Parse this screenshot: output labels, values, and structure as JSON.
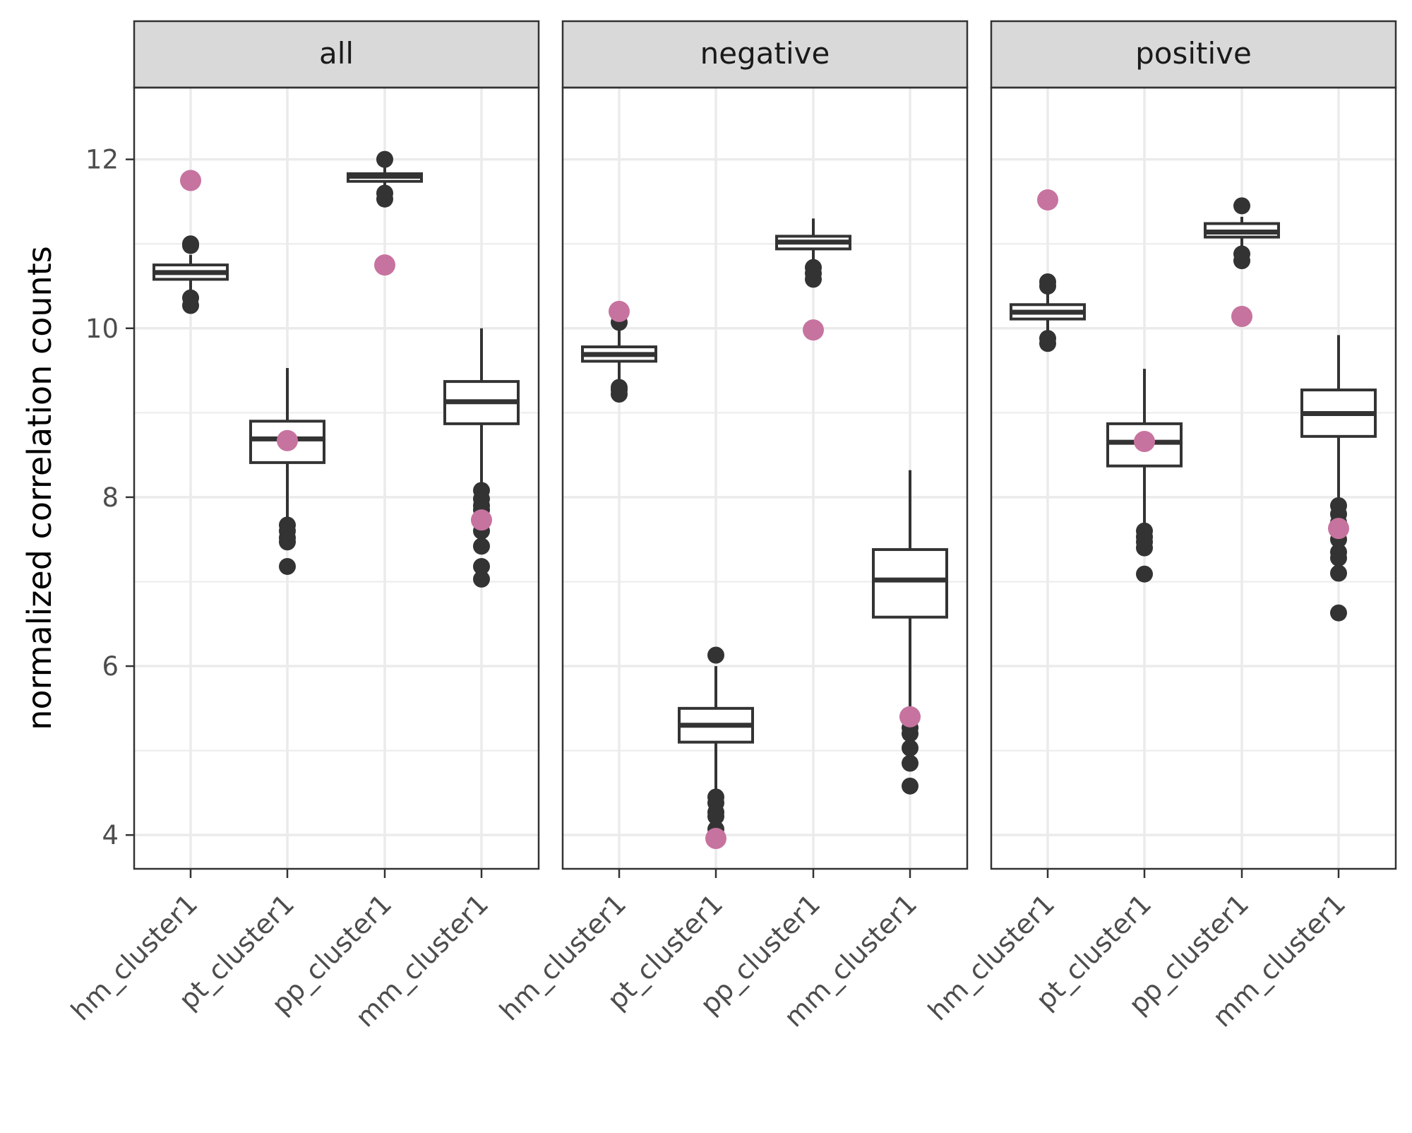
{
  "chart_data": {
    "type": "boxplot",
    "ylabel": "normalized correlation counts",
    "xlabel": "",
    "ylim": [
      3.6,
      12.85
    ],
    "yticks": [
      4,
      6,
      8,
      10,
      12
    ],
    "grid": true,
    "categories": [
      "hm_cluster1",
      "pt_cluster1",
      "pp_cluster1",
      "mm_cluster1"
    ],
    "colors": {
      "box": "#333333",
      "observed": "#c7739f",
      "strip": "#d9d9d9",
      "grid": "#ebebeb"
    },
    "panels": [
      {
        "title": "all",
        "boxes": [
          {
            "category": "hm_cluster1",
            "q1": 10.58,
            "median": 10.66,
            "q3": 10.75,
            "whisker_low": 10.45,
            "whisker_high": 10.87,
            "outliers": [
              10.98,
              11.0,
              10.36,
              10.27
            ],
            "observed": 11.75
          },
          {
            "category": "pt_cluster1",
            "q1": 8.41,
            "median": 8.69,
            "q3": 8.9,
            "whisker_low": 7.72,
            "whisker_high": 9.53,
            "outliers": [
              7.67,
              7.6,
              7.52,
              7.47,
              7.18
            ],
            "observed": 8.67
          },
          {
            "category": "pp_cluster1",
            "q1": 11.74,
            "median": 11.8,
            "q3": 11.83,
            "whisker_low": 11.65,
            "whisker_high": 11.93,
            "outliers": [
              12.0,
              11.6,
              11.53
            ],
            "observed": 10.75
          },
          {
            "category": "mm_cluster1",
            "q1": 8.87,
            "median": 9.13,
            "q3": 9.37,
            "whisker_low": 8.15,
            "whisker_high": 10.0,
            "outliers": [
              8.08,
              7.98,
              7.9,
              7.85,
              7.77,
              7.6,
              7.42,
              7.18,
              7.03
            ],
            "observed": 7.73
          }
        ]
      },
      {
        "title": "negative",
        "boxes": [
          {
            "category": "hm_cluster1",
            "q1": 9.61,
            "median": 9.69,
            "q3": 9.78,
            "whisker_low": 9.38,
            "whisker_high": 10.0,
            "outliers": [
              10.07,
              9.3,
              9.27,
              9.22
            ],
            "observed": 10.2
          },
          {
            "category": "pt_cluster1",
            "q1": 5.1,
            "median": 5.3,
            "q3": 5.5,
            "whisker_low": 4.52,
            "whisker_high": 6.0,
            "outliers": [
              6.13,
              4.45,
              4.38,
              4.27,
              4.22,
              4.07
            ],
            "observed": 3.96
          },
          {
            "category": "pp_cluster1",
            "q1": 10.94,
            "median": 11.02,
            "q3": 11.09,
            "whisker_low": 10.77,
            "whisker_high": 11.3,
            "outliers": [
              10.72,
              10.65,
              10.58
            ],
            "observed": 9.98
          },
          {
            "category": "mm_cluster1",
            "q1": 6.58,
            "median": 7.02,
            "q3": 7.38,
            "whisker_low": 5.35,
            "whisker_high": 8.32,
            "outliers": [
              5.27,
              5.2,
              5.03,
              4.85,
              4.58
            ],
            "observed": 5.4
          }
        ]
      },
      {
        "title": "positive",
        "boxes": [
          {
            "category": "hm_cluster1",
            "q1": 10.11,
            "median": 10.19,
            "q3": 10.28,
            "whisker_low": 9.95,
            "whisker_high": 10.45,
            "outliers": [
              10.55,
              10.5,
              9.88,
              9.82
            ],
            "observed": 11.52
          },
          {
            "category": "pt_cluster1",
            "q1": 8.37,
            "median": 8.65,
            "q3": 8.87,
            "whisker_low": 7.65,
            "whisker_high": 9.52,
            "outliers": [
              7.6,
              7.53,
              7.47,
              7.4,
              7.09
            ],
            "observed": 8.66
          },
          {
            "category": "pp_cluster1",
            "q1": 11.08,
            "median": 11.14,
            "q3": 11.24,
            "whisker_low": 10.93,
            "whisker_high": 11.32,
            "outliers": [
              11.45,
              10.88,
              10.8
            ],
            "observed": 10.14
          },
          {
            "category": "mm_cluster1",
            "q1": 8.72,
            "median": 8.99,
            "q3": 9.27,
            "whisker_low": 7.95,
            "whisker_high": 9.92,
            "outliers": [
              7.9,
              7.8,
              7.7,
              7.63,
              7.5,
              7.35,
              7.28,
              7.1,
              6.63
            ],
            "observed": 7.63
          }
        ]
      }
    ]
  }
}
